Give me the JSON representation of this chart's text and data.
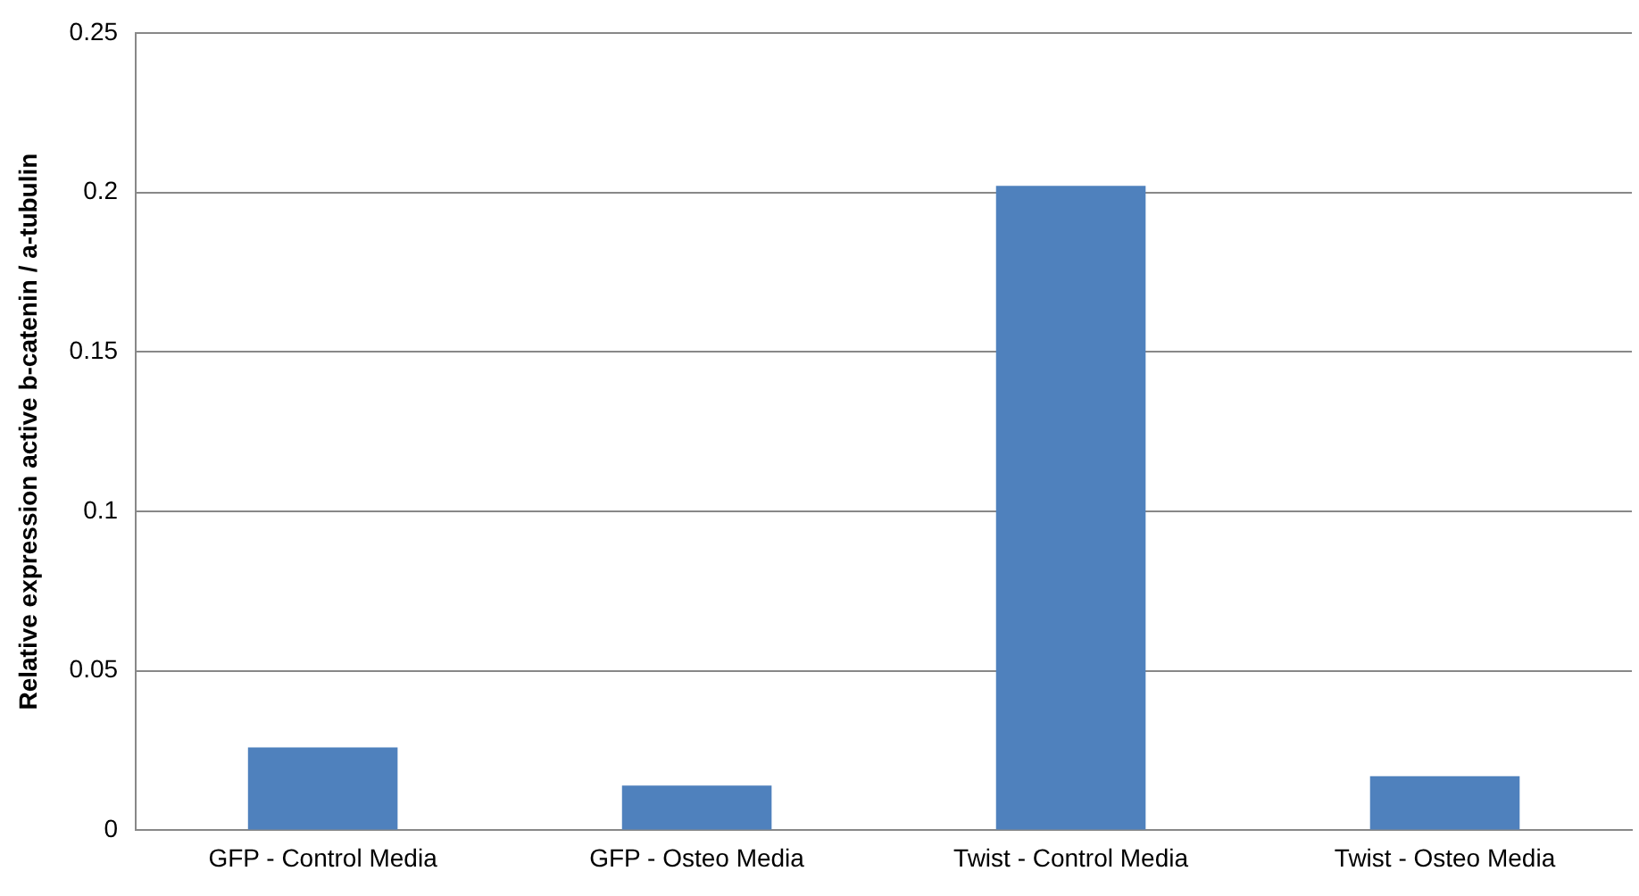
{
  "chart_data": {
    "type": "bar",
    "ylabel": "Relative expression active b-catenin / a-tubulin",
    "categories": [
      "GFP - Control Media",
      "GFP - Osteo Media",
      "Twist - Control Media",
      "Twist - Osteo Media"
    ],
    "values": [
      0.026,
      0.014,
      0.202,
      0.017
    ],
    "color": "#4f81bd",
    "ylim": [
      0,
      0.25
    ],
    "yticks": [
      0,
      0.05,
      0.1,
      0.15,
      0.2,
      0.25
    ],
    "grid": "y"
  }
}
